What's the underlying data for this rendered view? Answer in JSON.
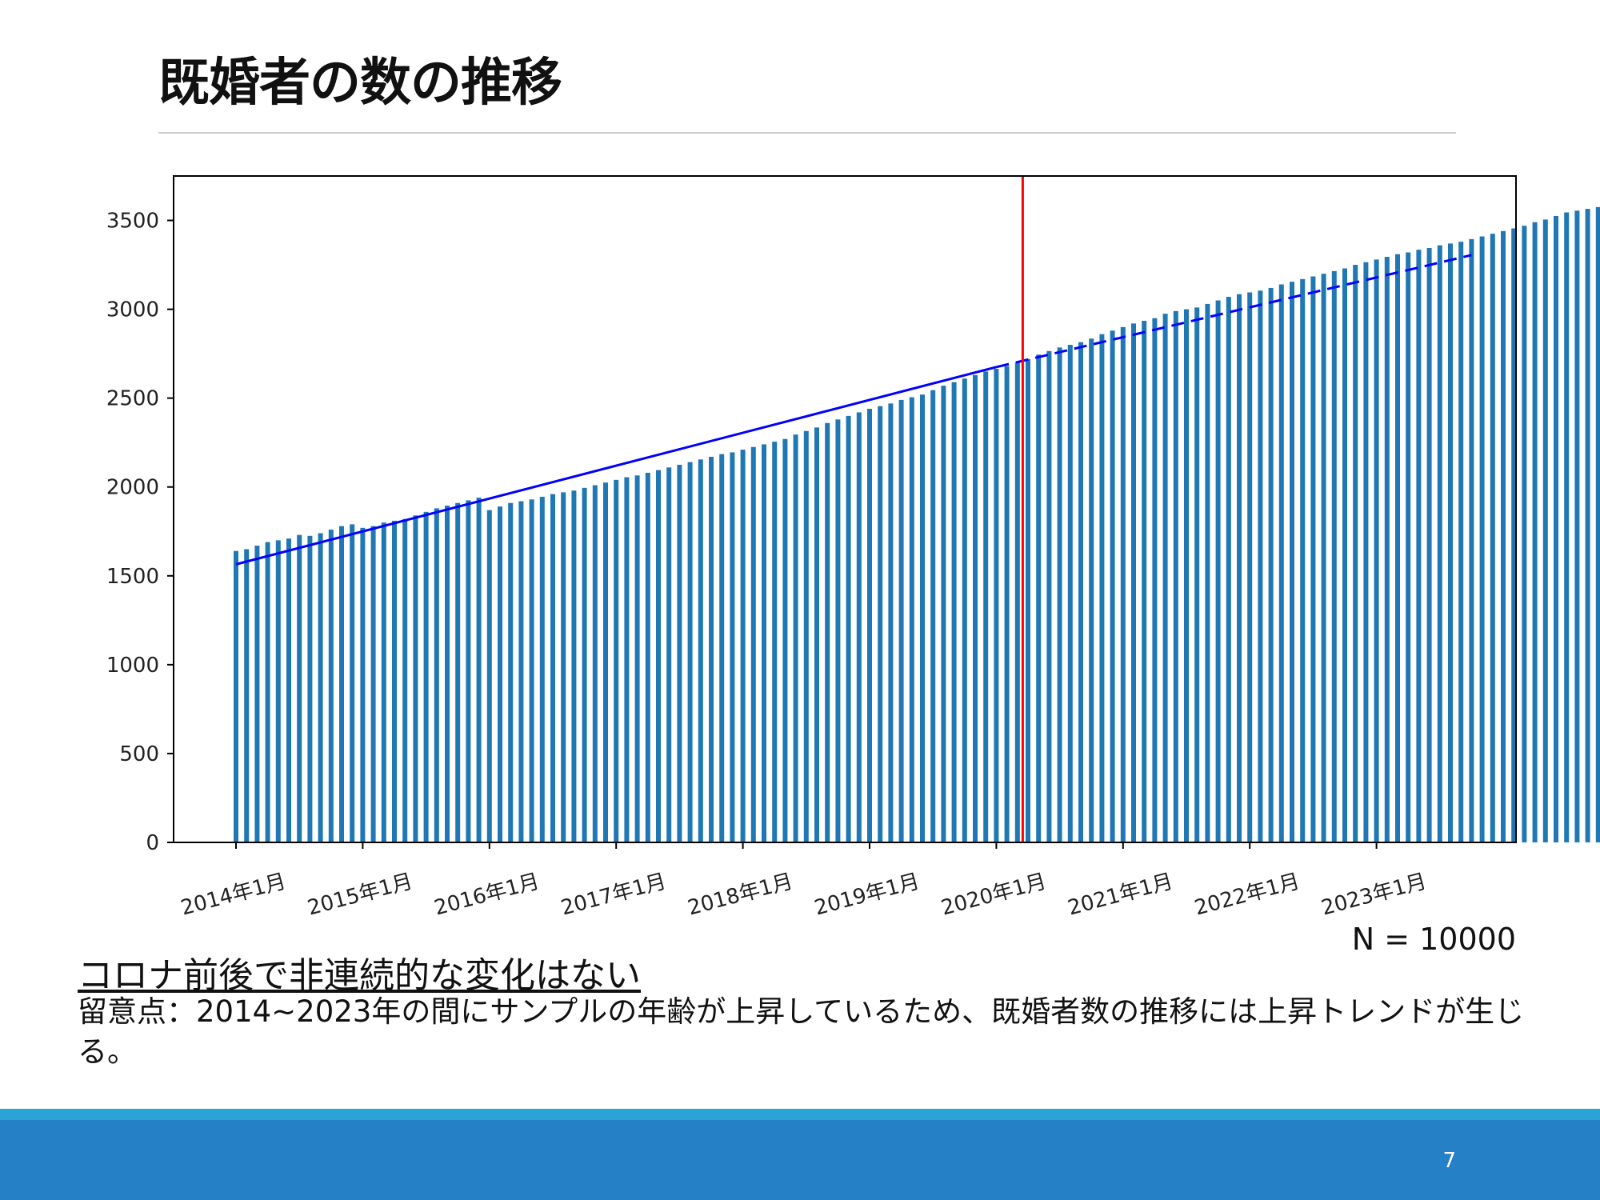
{
  "slide": {
    "title": "既婚者の数の推移",
    "sample_size": "N = 10000",
    "conclusion": "コロナ前後で非連続的な変化はない",
    "note": "留意点：2014~2023年の間にサンプルの年齢が上昇しているため、既婚者数の推移には上昇トレンドが生じる。",
    "page_number": "7"
  },
  "colors": {
    "bar": "#1f77b4",
    "trend": "#0000ff",
    "covid_line": "#ff0000",
    "footer": "#2580c6",
    "footer_band": "#29a3d8"
  },
  "chart_data": {
    "type": "bar",
    "title": "",
    "xlabel": "",
    "ylabel": "",
    "x_start": "2014年1月",
    "x_interval": "month",
    "x_ticks": [
      "2014年1月",
      "2015年1月",
      "2016年1月",
      "2017年1月",
      "2018年1月",
      "2019年1月",
      "2020年1月",
      "2021年1月",
      "2022年1月",
      "2023年1月"
    ],
    "y_ticks": [
      0,
      500,
      1000,
      1500,
      2000,
      2500,
      3000,
      3500
    ],
    "ylim": [
      0,
      3750
    ],
    "grid": false,
    "legend": "none",
    "series": [
      {
        "values": [
          1640,
          1650,
          1670,
          1690,
          1700,
          1710,
          1730,
          1725,
          1740,
          1760,
          1780,
          1790,
          1770,
          1780,
          1800,
          1810,
          1820,
          1840,
          1860,
          1880,
          1895,
          1910,
          1925,
          1940,
          1870,
          1890,
          1910,
          1920,
          1930,
          1945,
          1960,
          1970,
          1980,
          1995,
          2010,
          2025,
          2040,
          2055,
          2065,
          2080,
          2095,
          2110,
          2125,
          2140,
          2155,
          2170,
          2185,
          2195,
          2210,
          2225,
          2240,
          2255,
          2270,
          2295,
          2315,
          2335,
          2360,
          2380,
          2400,
          2420,
          2440,
          2455,
          2470,
          2490,
          2505,
          2520,
          2545,
          2570,
          2590,
          2610,
          2630,
          2650,
          2665,
          2680,
          2700,
          2720,
          2745,
          2765,
          2785,
          2800,
          2815,
          2835,
          2860,
          2880,
          2900,
          2920,
          2935,
          2950,
          2975,
          2990,
          3000,
          3010,
          3030,
          3050,
          3070,
          3085,
          3095,
          3105,
          3120,
          3140,
          3155,
          3170,
          3185,
          3200,
          3215,
          3230,
          3250,
          3265,
          3280,
          3295,
          3310,
          3320,
          3335,
          3345,
          3360,
          3370,
          3380,
          3395,
          3410,
          3425,
          3440,
          3455,
          3470,
          3490,
          3505,
          3525,
          3545,
          3555,
          3565,
          3575
        ]
      }
    ],
    "trend_lines": [
      {
        "style": "solid",
        "from": "2014年1月",
        "to": "2020年1月",
        "values": [
          1565,
          2675
        ]
      },
      {
        "style": "dashed",
        "from": "2020年1月",
        "to": "2023年10月",
        "values": [
          2675,
          3305
        ]
      }
    ],
    "vertical_line": {
      "at": "2020年3月"
    }
  }
}
